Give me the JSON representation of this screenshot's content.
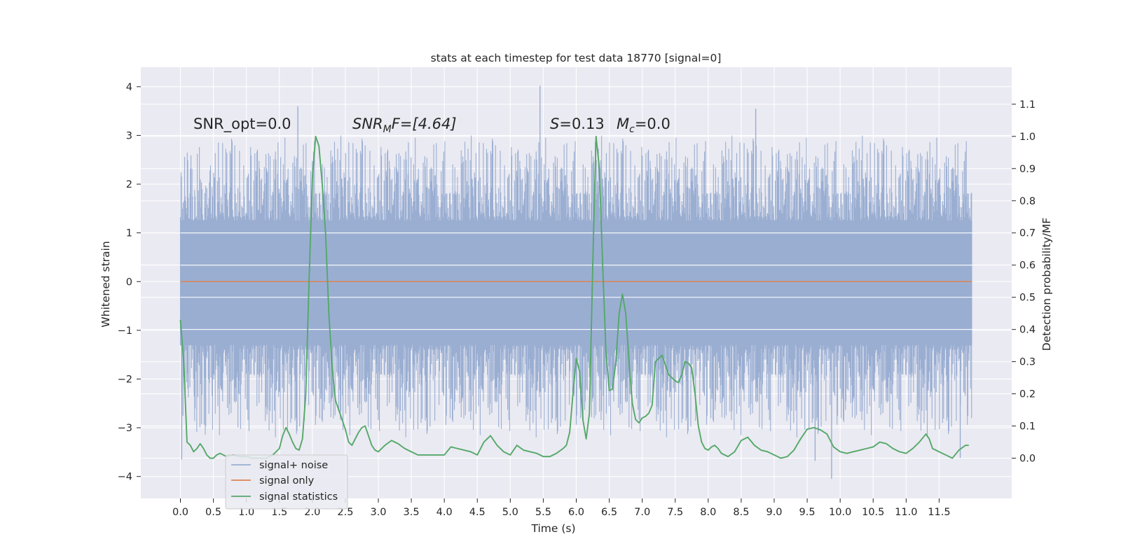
{
  "chart_data": {
    "type": "line",
    "title": "stats at each timestep for test data 18770 [signal=0]",
    "xlabel": "Time (s)",
    "ylabel": "Whitened strain",
    "y2label": "Detection probability/MF",
    "xlim": [
      -0.6,
      12.6
    ],
    "ylim": [
      -4.45,
      4.4
    ],
    "y2lim": [
      -0.125,
      1.215
    ],
    "x_ticks": [
      "0.0",
      "0.5",
      "1.0",
      "1.5",
      "2.0",
      "2.5",
      "3.0",
      "3.5",
      "4.0",
      "4.5",
      "5.0",
      "5.5",
      "6.0",
      "6.5",
      "7.0",
      "7.5",
      "8.0",
      "8.5",
      "9.0",
      "9.5",
      "10.0",
      "10.5",
      "11.0",
      "11.5"
    ],
    "y_ticks": [
      "4",
      "3",
      "2",
      "1",
      "0",
      "−1",
      "−2",
      "−3",
      "−4"
    ],
    "y2_ticks": [
      "1.1",
      "1.0",
      "0.9",
      "0.8",
      "0.7",
      "0.6",
      "0.5",
      "0.4",
      "0.3",
      "0.2",
      "0.1",
      "0.0"
    ],
    "annotations": {
      "snr_opt": "SNR_opt=0.0",
      "snr_mf_prefix": "SNR",
      "snr_mf_sub": "M",
      "snr_mf_suffix": "F=[4.64]",
      "s_symbol": "S",
      "s_value": "=0.13",
      "mc_symbol": "M",
      "mc_sub": "c",
      "mc_value": "=0.0"
    },
    "legend": {
      "position": "lower-left",
      "entries": [
        "signal+ noise",
        "signal only",
        "signal statistics"
      ]
    },
    "colors": {
      "background": "#eaeaf2",
      "grid": "#ffffff",
      "noise": "#9aaed2",
      "signal_only": "#dd8452",
      "statistic": "#55a868",
      "text": "#262626"
    },
    "series": [
      {
        "name": "signal+ noise",
        "axis": "left",
        "kind": "dense noise, peaks near +/-2 to +/-3.5, extremes 4.0 at t=5.45 and -4.05 at t=9.9",
        "band_upper_min": 1.25,
        "band_upper_max": 2.0,
        "band_lower_min": -1.3,
        "band_lower_max": -2.2,
        "extreme_peaks": [
          {
            "t": 5.45,
            "y": 4.02
          },
          {
            "t": 1.78,
            "y": 3.6
          },
          {
            "t": 8.72,
            "y": 3.55
          },
          {
            "t": 0.02,
            "y": -3.65
          },
          {
            "t": 9.87,
            "y": -4.05
          },
          {
            "t": 9.62,
            "y": -3.68
          },
          {
            "t": 11.82,
            "y": -3.62
          }
        ]
      },
      {
        "name": "signal only",
        "axis": "left",
        "x": [
          0.0,
          12.0
        ],
        "values": [
          0.0,
          0.0
        ]
      },
      {
        "name": "signal statistics",
        "axis": "right",
        "x": [
          0.0,
          0.05,
          0.1,
          0.15,
          0.2,
          0.25,
          0.3,
          0.35,
          0.4,
          0.45,
          0.5,
          0.55,
          0.6,
          0.65,
          0.7,
          0.8,
          0.9,
          1.0,
          1.1,
          1.2,
          1.3,
          1.4,
          1.5,
          1.55,
          1.6,
          1.65,
          1.7,
          1.75,
          1.8,
          1.85,
          1.9,
          1.95,
          2.0,
          2.05,
          2.1,
          2.15,
          2.2,
          2.25,
          2.3,
          2.35,
          2.4,
          2.45,
          2.5,
          2.55,
          2.6,
          2.65,
          2.7,
          2.75,
          2.8,
          2.85,
          2.9,
          2.95,
          3.0,
          3.1,
          3.2,
          3.3,
          3.4,
          3.5,
          3.6,
          3.7,
          3.8,
          3.9,
          4.0,
          4.1,
          4.2,
          4.3,
          4.4,
          4.5,
          4.6,
          4.7,
          4.8,
          4.9,
          5.0,
          5.1,
          5.2,
          5.3,
          5.4,
          5.5,
          5.6,
          5.7,
          5.8,
          5.85,
          5.9,
          5.95,
          6.0,
          6.05,
          6.1,
          6.15,
          6.2,
          6.25,
          6.3,
          6.35,
          6.4,
          6.45,
          6.5,
          6.55,
          6.6,
          6.65,
          6.7,
          6.75,
          6.8,
          6.85,
          6.9,
          6.95,
          7.0,
          7.05,
          7.1,
          7.15,
          7.2,
          7.3,
          7.4,
          7.5,
          7.55,
          7.6,
          7.65,
          7.7,
          7.75,
          7.8,
          7.85,
          7.9,
          7.95,
          8.0,
          8.05,
          8.1,
          8.15,
          8.2,
          8.3,
          8.4,
          8.5,
          8.6,
          8.7,
          8.8,
          8.9,
          9.0,
          9.1,
          9.2,
          9.3,
          9.4,
          9.5,
          9.6,
          9.7,
          9.8,
          9.85,
          9.9,
          10.0,
          10.1,
          10.2,
          10.3,
          10.4,
          10.5,
          10.6,
          10.7,
          10.8,
          10.9,
          11.0,
          11.1,
          11.2,
          11.3,
          11.35,
          11.4,
          11.5,
          11.6,
          11.7,
          11.8,
          11.9,
          11.95
        ],
        "values": [
          0.43,
          0.3,
          0.05,
          0.04,
          0.02,
          0.03,
          0.045,
          0.03,
          0.01,
          0.0,
          0.0,
          0.01,
          0.015,
          0.01,
          0.005,
          0.01,
          0.005,
          0.005,
          0.0,
          0.0,
          0.0,
          0.01,
          0.03,
          0.07,
          0.095,
          0.075,
          0.05,
          0.03,
          0.025,
          0.06,
          0.2,
          0.55,
          0.87,
          1.0,
          0.97,
          0.85,
          0.7,
          0.45,
          0.28,
          0.18,
          0.15,
          0.12,
          0.09,
          0.05,
          0.04,
          0.06,
          0.08,
          0.095,
          0.1,
          0.07,
          0.04,
          0.025,
          0.02,
          0.04,
          0.055,
          0.045,
          0.03,
          0.02,
          0.01,
          0.01,
          0.01,
          0.01,
          0.01,
          0.035,
          0.03,
          0.025,
          0.02,
          0.01,
          0.05,
          0.07,
          0.04,
          0.02,
          0.01,
          0.04,
          0.025,
          0.02,
          0.015,
          0.005,
          0.005,
          0.015,
          0.03,
          0.04,
          0.08,
          0.2,
          0.31,
          0.27,
          0.12,
          0.06,
          0.14,
          0.6,
          1.0,
          0.9,
          0.6,
          0.33,
          0.21,
          0.215,
          0.3,
          0.45,
          0.51,
          0.45,
          0.3,
          0.17,
          0.12,
          0.11,
          0.125,
          0.13,
          0.14,
          0.165,
          0.3,
          0.32,
          0.26,
          0.24,
          0.235,
          0.26,
          0.3,
          0.295,
          0.28,
          0.2,
          0.1,
          0.05,
          0.03,
          0.025,
          0.035,
          0.04,
          0.03,
          0.015,
          0.005,
          0.02,
          0.055,
          0.065,
          0.04,
          0.025,
          0.02,
          0.01,
          0.0,
          0.005,
          0.025,
          0.06,
          0.09,
          0.095,
          0.088,
          0.075,
          0.055,
          0.035,
          0.02,
          0.015,
          0.02,
          0.025,
          0.03,
          0.035,
          0.05,
          0.045,
          0.03,
          0.02,
          0.015,
          0.03,
          0.05,
          0.075,
          0.06,
          0.03,
          0.02,
          0.01,
          0.0,
          0.025,
          0.04,
          0.04
        ]
      }
    ]
  }
}
